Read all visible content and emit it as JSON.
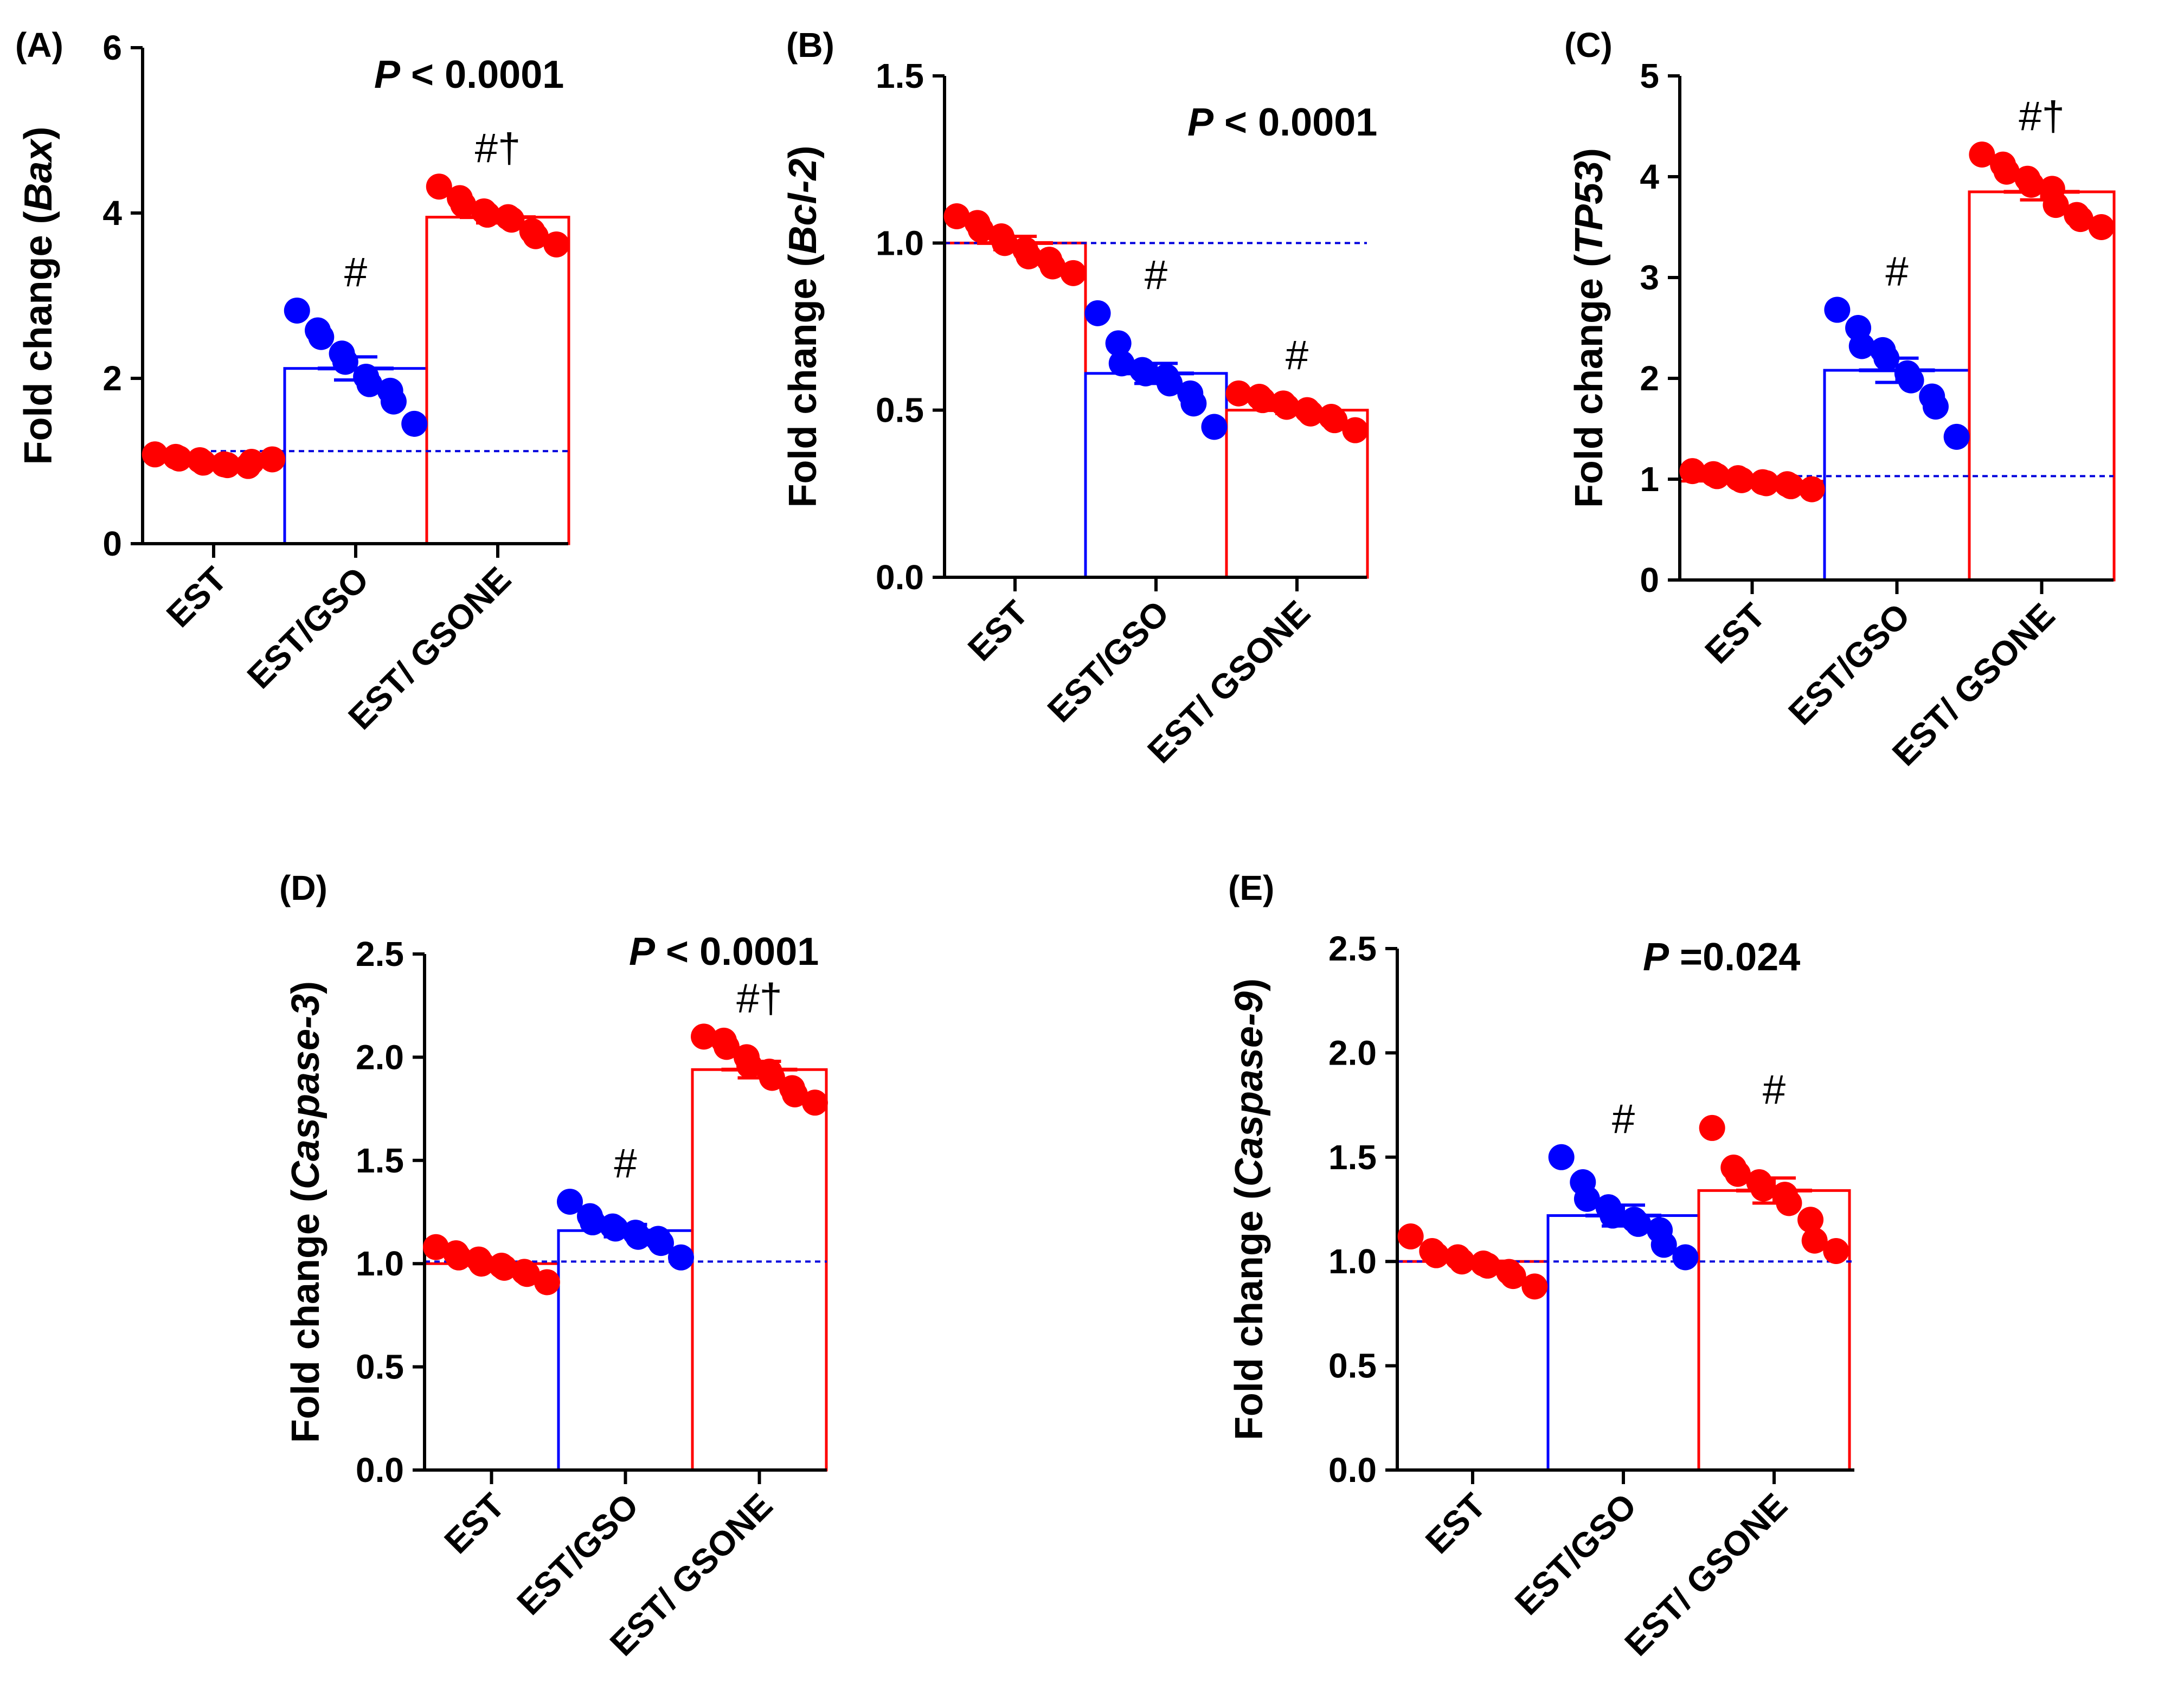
{
  "figure": {
    "categories": [
      "EST",
      "EST/GSO",
      "EST/ GSONE"
    ],
    "colors": {
      "red": "#ff0000",
      "blue": "#0000ff",
      "ref_line": "#0000dd",
      "axis": "#000000"
    }
  },
  "chart_data": [
    {
      "panel": "(A)",
      "type": "bar",
      "ylabel_prefix": "Fold change (",
      "ylabel_gene": "Bax",
      "ylabel_suffix": ")",
      "ylim": [
        0,
        6
      ],
      "yticks": [
        "0",
        "2",
        "4",
        "6"
      ],
      "ytick_values": [
        0,
        2,
        4,
        6
      ],
      "categories": [
        "EST",
        "EST/GSO",
        "EST/ GSONE"
      ],
      "values": [
        1.02,
        2.12,
        3.95
      ],
      "sem": [
        0.03,
        0.14,
        0.07
      ],
      "reference_line": 1.12,
      "points": [
        [
          1.08,
          1.05,
          1.03,
          1.01,
          0.98,
          0.96,
          0.95,
          0.94,
          0.99,
          1.02
        ],
        [
          2.82,
          2.58,
          2.5,
          2.3,
          2.2,
          2.02,
          1.93,
          1.85,
          1.72,
          1.45
        ],
        [
          4.32,
          4.18,
          4.1,
          4.02,
          3.98,
          3.95,
          3.92,
          3.78,
          3.72,
          3.62
        ]
      ],
      "p_label": "P",
      "p_text": " < 0.0001",
      "significance": [
        "",
        "#",
        "#†"
      ]
    },
    {
      "panel": "(B)",
      "type": "bar",
      "ylabel_prefix": "Fold change (",
      "ylabel_gene": "Bcl-2",
      "ylabel_suffix": ")",
      "ylim": [
        0,
        1.5
      ],
      "yticks": [
        "0.0",
        "0.5",
        "1.0",
        "1.5"
      ],
      "ytick_values": [
        0,
        0.5,
        1.0,
        1.5
      ],
      "categories": [
        "EST",
        "EST/GSO",
        "EST/ GSONE"
      ],
      "values": [
        1.0,
        0.61,
        0.5
      ],
      "sem": [
        0.02,
        0.03,
        0.01
      ],
      "reference_line": 1.0,
      "points": [
        [
          1.08,
          1.06,
          1.04,
          1.02,
          1.0,
          0.98,
          0.96,
          0.95,
          0.93,
          0.91
        ],
        [
          0.79,
          0.7,
          0.64,
          0.62,
          0.61,
          0.6,
          0.58,
          0.55,
          0.52,
          0.45
        ],
        [
          0.55,
          0.54,
          0.53,
          0.52,
          0.51,
          0.5,
          0.49,
          0.48,
          0.47,
          0.44
        ]
      ],
      "p_label": "P",
      "p_text": " < 0.0001",
      "significance": [
        "",
        "#",
        "#"
      ]
    },
    {
      "panel": "(C)",
      "type": "bar",
      "ylabel_prefix": "Fold change (",
      "ylabel_gene": "TP53",
      "ylabel_suffix": ")",
      "ylim": [
        0,
        5
      ],
      "yticks": [
        "0",
        "1",
        "2",
        "3",
        "4",
        "5"
      ],
      "ytick_values": [
        0,
        1,
        2,
        3,
        4,
        5
      ],
      "categories": [
        "EST",
        "EST/GSO",
        "EST/ GSONE"
      ],
      "values": [
        0.98,
        2.08,
        3.85
      ],
      "sem": [
        0.03,
        0.12,
        0.08
      ],
      "reference_line": 1.03,
      "points": [
        [
          1.08,
          1.05,
          1.03,
          1.01,
          0.99,
          0.97,
          0.96,
          0.95,
          0.93,
          0.9
        ],
        [
          2.68,
          2.5,
          2.32,
          2.28,
          2.2,
          2.05,
          1.98,
          1.82,
          1.72,
          1.42
        ],
        [
          4.22,
          4.12,
          4.05,
          3.98,
          3.92,
          3.88,
          3.72,
          3.62,
          3.58,
          3.5
        ]
      ],
      "p_label": "",
      "p_text": "",
      "significance": [
        "",
        "#",
        "#†"
      ]
    },
    {
      "panel": "(D)",
      "type": "bar",
      "ylabel_prefix": "Fold change (",
      "ylabel_gene": "Caspase-3",
      "ylabel_suffix": ")",
      "ylim": [
        0,
        2.5
      ],
      "yticks": [
        "0.0",
        "0.5",
        "1.0",
        "1.5",
        "2.0",
        "2.5"
      ],
      "ytick_values": [
        0,
        0.5,
        1.0,
        1.5,
        2.0,
        2.5
      ],
      "categories": [
        "EST",
        "EST/GSO",
        "EST/ GSONE"
      ],
      "values": [
        1.0,
        1.16,
        1.94
      ],
      "sem": [
        0.02,
        0.03,
        0.04
      ],
      "reference_line": 1.01,
      "points": [
        [
          1.08,
          1.05,
          1.03,
          1.02,
          1.0,
          0.99,
          0.98,
          0.96,
          0.95,
          0.91
        ],
        [
          1.3,
          1.23,
          1.2,
          1.18,
          1.17,
          1.15,
          1.13,
          1.12,
          1.1,
          1.03
        ],
        [
          2.1,
          2.08,
          2.05,
          2.0,
          1.96,
          1.93,
          1.9,
          1.85,
          1.82,
          1.78
        ]
      ],
      "p_label": "P",
      "p_text": " < 0.0001",
      "significance": [
        "",
        "#",
        "#†"
      ]
    },
    {
      "panel": "(E)",
      "type": "bar",
      "ylabel_prefix": "Fold change (",
      "ylabel_gene": "Caspase-9",
      "ylabel_suffix": ")",
      "ylim": [
        0,
        2.5
      ],
      "yticks": [
        "0.0",
        "0.5",
        "1.0",
        "1.5",
        "2.0",
        "2.5"
      ],
      "ytick_values": [
        0,
        0.5,
        1.0,
        1.5,
        2.0,
        2.5
      ],
      "categories": [
        "EST",
        "EST/GSO",
        "EST/ GSONE"
      ],
      "values": [
        1.0,
        1.22,
        1.34
      ],
      "sem": [
        0.02,
        0.05,
        0.06
      ],
      "reference_line": 1.0,
      "points": [
        [
          1.12,
          1.05,
          1.03,
          1.02,
          1.0,
          0.99,
          0.98,
          0.95,
          0.93,
          0.88
        ],
        [
          1.5,
          1.38,
          1.3,
          1.26,
          1.22,
          1.2,
          1.18,
          1.15,
          1.08,
          1.02
        ],
        [
          1.64,
          1.45,
          1.42,
          1.38,
          1.35,
          1.32,
          1.28,
          1.2,
          1.1,
          1.05
        ]
      ],
      "p_label": "P",
      "p_text": " =0.024",
      "significance": [
        "",
        "#",
        "#"
      ]
    }
  ]
}
